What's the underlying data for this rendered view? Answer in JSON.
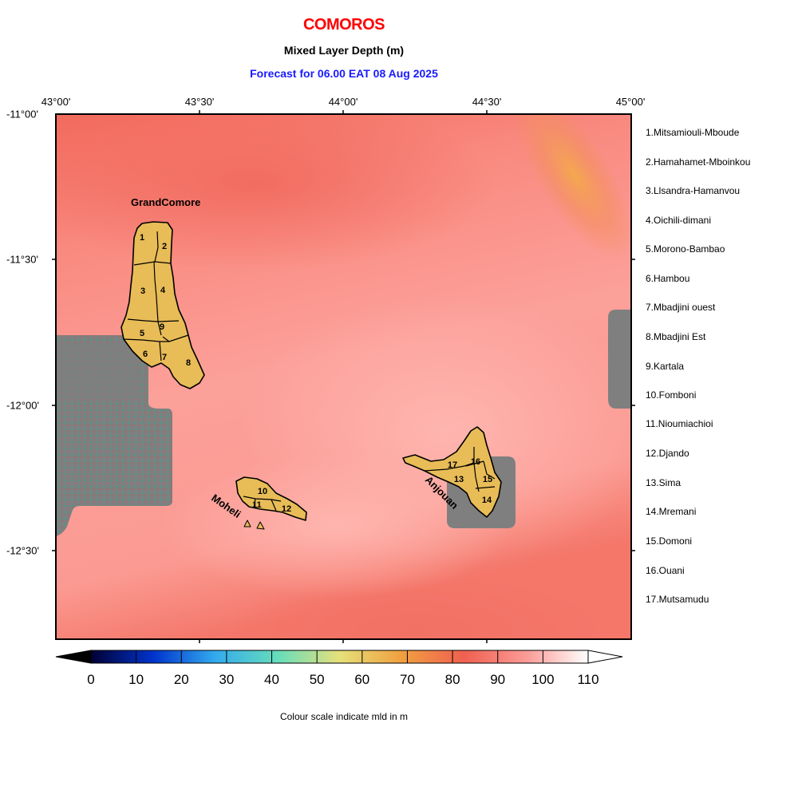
{
  "header": {
    "country": "COMOROS",
    "variable": "Mixed Layer Depth (m)",
    "forecast": "Forecast for  06.00 EAT 08 Aug 2025"
  },
  "map": {
    "lon_labels": [
      "43°00'",
      "43°30'",
      "44°00'",
      "44°30'",
      "45°00'"
    ],
    "lat_labels": [
      "-11°00'",
      "-11°30'",
      "-12°00'",
      "-12°30'"
    ],
    "island_labels": {
      "grand_comore": "GrandComore",
      "moheli": "Moheli",
      "anjouan": "Anjouan"
    },
    "region_numbers": [
      "1",
      "2",
      "3",
      "4",
      "5",
      "6",
      "7",
      "8",
      "9",
      "10",
      "11",
      "12",
      "13",
      "14",
      "15",
      "16",
      "17"
    ],
    "colors": {
      "background": "#f98a7f",
      "island_fill": "#e8bc57",
      "land_mask": "#808080"
    }
  },
  "legend": [
    "1.Mitsamiouli-Mboude",
    "2.Hamahamet-Mboinkou",
    "3.Llsandra-Hamanvou",
    "4.Oichili-dimani",
    "5.Morono-Bambao",
    "6.Hambou",
    "7.Mbadjini ouest",
    "8.Mbadjini Est",
    "9.Kartala",
    "10.Fomboni",
    "11.Nioumiachioi",
    "12.Djando",
    "13.Sima",
    "14.Mremani",
    "15.Domoni",
    "16.Ouani",
    "17.Mutsamudu"
  ],
  "colorbar": {
    "ticks": [
      "0",
      "10",
      "20",
      "30",
      "40",
      "50",
      "60",
      "70",
      "80",
      "90",
      "100",
      "110"
    ],
    "caption": "Colour scale indicate mld in m",
    "range": [
      0,
      110
    ],
    "stops": [
      "#000033",
      "#0033cc",
      "#33aaee",
      "#66ddbb",
      "#e6e07a",
      "#f0a040",
      "#f06050",
      "#fa9a95",
      "#ffffff"
    ]
  }
}
